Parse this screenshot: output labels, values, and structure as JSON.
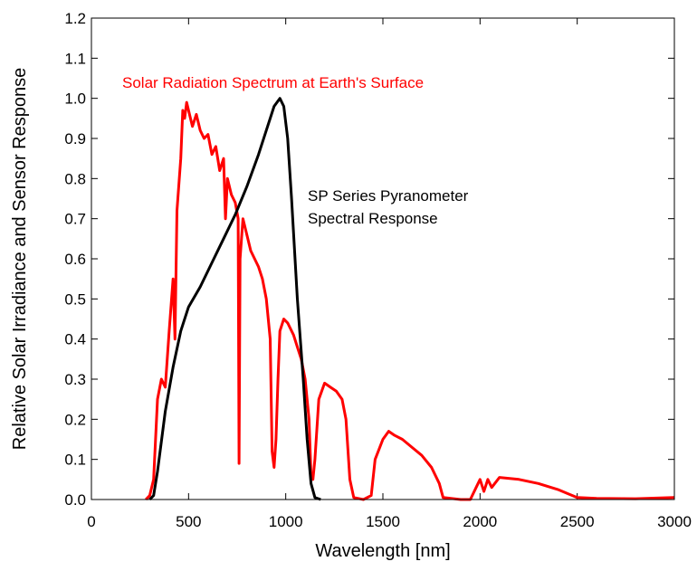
{
  "chart_data": {
    "type": "line",
    "xlabel": "Wavelength [nm]",
    "ylabel": "Relative Solar Irradiance and Sensor Response",
    "xlim": [
      0,
      3000
    ],
    "xticks": [
      0,
      500,
      1000,
      1500,
      2000,
      2500,
      3000
    ],
    "ylim": [
      0,
      1.2
    ],
    "yticks": [
      {
        "value": 0,
        "label": "0.0"
      },
      0.1,
      0.2,
      0.3,
      0.4,
      0.5,
      0.6,
      0.7,
      0.8,
      0.9,
      {
        "value": 1,
        "label": "1.0"
      },
      1.1,
      1.2
    ],
    "series": [
      {
        "name": "Solar Radiation Spectrum at Earth's Surface",
        "color": "#ff0000",
        "x": [
          280,
          300,
          320,
          340,
          360,
          380,
          400,
          420,
          430,
          440,
          460,
          470,
          480,
          490,
          500,
          520,
          540,
          560,
          580,
          600,
          620,
          640,
          660,
          680,
          690,
          700,
          720,
          740,
          755,
          760,
          765,
          780,
          800,
          820,
          840,
          860,
          880,
          900,
          920,
          930,
          940,
          950,
          960,
          970,
          990,
          1010,
          1040,
          1060,
          1080,
          1100,
          1120,
          1130,
          1140,
          1150,
          1170,
          1200,
          1230,
          1260,
          1290,
          1310,
          1330,
          1350,
          1400,
          1440,
          1460,
          1500,
          1530,
          1560,
          1600,
          1650,
          1700,
          1750,
          1790,
          1810,
          1900,
          1950,
          1980,
          2000,
          2020,
          2040,
          2060,
          2100,
          2200,
          2300,
          2400,
          2450,
          2500,
          2600,
          2800,
          3000
        ],
        "values": [
          0,
          0.01,
          0.05,
          0.25,
          0.3,
          0.28,
          0.42,
          0.55,
          0.4,
          0.72,
          0.85,
          0.97,
          0.95,
          0.99,
          0.97,
          0.93,
          0.96,
          0.92,
          0.9,
          0.91,
          0.86,
          0.88,
          0.82,
          0.85,
          0.7,
          0.8,
          0.76,
          0.74,
          0.7,
          0.09,
          0.6,
          0.7,
          0.66,
          0.62,
          0.6,
          0.58,
          0.55,
          0.5,
          0.4,
          0.12,
          0.08,
          0.15,
          0.3,
          0.42,
          0.45,
          0.44,
          0.41,
          0.38,
          0.35,
          0.3,
          0.2,
          0.06,
          0.05,
          0.1,
          0.25,
          0.29,
          0.28,
          0.27,
          0.25,
          0.2,
          0.05,
          0.005,
          0,
          0.01,
          0.1,
          0.15,
          0.17,
          0.16,
          0.15,
          0.13,
          0.11,
          0.08,
          0.04,
          0.005,
          0,
          0,
          0.03,
          0.05,
          0.02,
          0.05,
          0.03,
          0.055,
          0.05,
          0.04,
          0.025,
          0.015,
          0.005,
          0.003,
          0.002,
          0.005
        ]
      },
      {
        "name": [
          "SP Series Pyranometer",
          "Spectral Response"
        ],
        "color": "#000000",
        "x": [
          300,
          320,
          340,
          380,
          420,
          460,
          500,
          560,
          620,
          680,
          740,
          800,
          860,
          900,
          940,
          970,
          990,
          1010,
          1030,
          1060,
          1090,
          1110,
          1130,
          1150,
          1180
        ],
        "values": [
          0,
          0.01,
          0.07,
          0.22,
          0.33,
          0.42,
          0.48,
          0.53,
          0.59,
          0.65,
          0.71,
          0.78,
          0.86,
          0.92,
          0.98,
          1.0,
          0.98,
          0.9,
          0.75,
          0.5,
          0.3,
          0.15,
          0.04,
          0.005,
          0
        ]
      }
    ]
  }
}
